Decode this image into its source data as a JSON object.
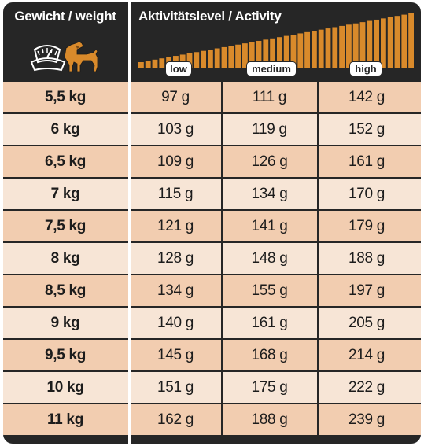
{
  "header": {
    "weight_title": "Gewicht / weight",
    "activity_title": "Aktivitätslevel / Activity",
    "levels": [
      "low",
      "medium",
      "high"
    ],
    "icons": [
      "scale-with-dog-icon"
    ]
  },
  "colors": {
    "frame": "#262626",
    "ramp": "#d98a2b",
    "row_dark": "#f2cdb0",
    "row_light": "#f7e5d6"
  },
  "rows": [
    {
      "weight": "5,5 kg",
      "low": "97 g",
      "medium": "111 g",
      "high": "142 g"
    },
    {
      "weight": "6 kg",
      "low": "103 g",
      "medium": "119 g",
      "high": "152 g"
    },
    {
      "weight": "6,5 kg",
      "low": "109 g",
      "medium": "126 g",
      "high": "161 g"
    },
    {
      "weight": "7 kg",
      "low": "115 g",
      "medium": "134 g",
      "high": "170 g"
    },
    {
      "weight": "7,5 kg",
      "low": "121 g",
      "medium": "141 g",
      "high": "179 g"
    },
    {
      "weight": "8 kg",
      "low": "128 g",
      "medium": "148 g",
      "high": "188 g"
    },
    {
      "weight": "8,5 kg",
      "low": "134 g",
      "medium": "155 g",
      "high": "197 g"
    },
    {
      "weight": "9 kg",
      "low": "140 g",
      "medium": "161 g",
      "high": "205 g"
    },
    {
      "weight": "9,5 kg",
      "low": "145 g",
      "medium": "168 g",
      "high": "214 g"
    },
    {
      "weight": "10 kg",
      "low": "151 g",
      "medium": "175 g",
      "high": "222 g"
    },
    {
      "weight": "11 kg",
      "low": "162 g",
      "medium": "188 g",
      "high": "239 g"
    }
  ]
}
